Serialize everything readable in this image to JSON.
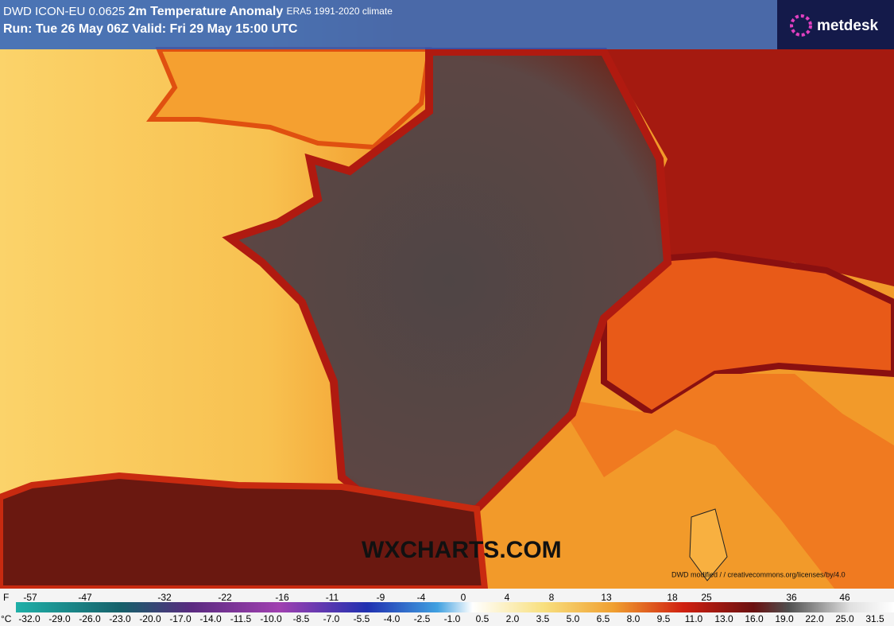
{
  "header": {
    "model": "DWD ICON-EU 0.0625",
    "field": "2m Temperature Anomaly",
    "climate": "ERA5 1991-2020 climate",
    "run": "Run: Tue 26 May 06Z Valid: Fri 29 May 15:00 UTC"
  },
  "logo": "metdesk",
  "watermark": "WXCHARTS.COM",
  "attribution": "DWD modified / / creativecommons.org/licenses/by/4.0",
  "legend": {
    "f_unit": "F",
    "f_labels": [
      "-57",
      "-47",
      "-32",
      "-22",
      "-16",
      "-11",
      "-9",
      "-4",
      "0",
      "4",
      "8",
      "13",
      "18",
      "25",
      "36",
      "46"
    ],
    "c_unit": "°C",
    "c_labels": [
      "-32.0",
      "-29.0",
      "-26.0",
      "-23.0",
      "-20.0",
      "-17.0",
      "-14.0",
      "-11.5",
      "-10.0",
      "-8.5",
      "-7.0",
      "-5.5",
      "-4.0",
      "-2.5",
      "-1.0",
      "0.5",
      "2.0",
      "3.5",
      "5.0",
      "6.5",
      "8.0",
      "9.5",
      "11.0",
      "13.0",
      "16.0",
      "19.0",
      "22.0",
      "25.0",
      "31.5"
    ]
  }
}
